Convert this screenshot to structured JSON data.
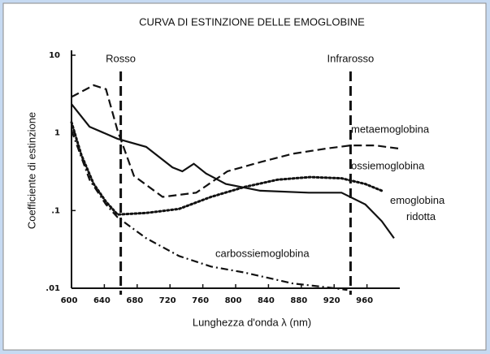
{
  "chart_data": {
    "type": "line",
    "title": "CURVA DI ESTINZIONE DELLE EMOGLOBINE",
    "xlabel": "Lunghezza d'onda λ (nm)",
    "ylabel": "Coefficiente di estinzione",
    "xlim": [
      600,
      1000
    ],
    "xticks": [
      600,
      640,
      680,
      720,
      760,
      800,
      840,
      880,
      920,
      960
    ],
    "ylim": [
      0.01,
      10
    ],
    "yticks": [
      {
        "value": 0.01,
        "label": ".01"
      },
      {
        "value": 0.1,
        "label": ".1"
      },
      1,
      10
    ],
    "log_y": true,
    "grid": false,
    "vlines": [
      {
        "x": 660,
        "label": "Rosso"
      },
      {
        "x": 940,
        "label": "Infrarosso"
      }
    ],
    "series": [
      {
        "name": "metaemoglobina",
        "color": "#111111",
        "style": "dashed",
        "x": [
          600,
          627,
          642,
          656,
          676,
          711,
          752,
          790,
          830,
          870,
          911,
          940,
          970,
          998
        ],
        "values": [
          2.9,
          4.1,
          3.66,
          1.08,
          0.28,
          0.15,
          0.17,
          0.32,
          0.42,
          0.54,
          0.63,
          0.69,
          0.69,
          0.63
        ]
      },
      {
        "name": "ossiemoglobina",
        "color": "#111111",
        "style": "dotted",
        "x": [
          600,
          612,
          627,
          642,
          656,
          691,
          731,
          770,
          810,
          851,
          891,
          929,
          958,
          978
        ],
        "values": [
          1.37,
          0.52,
          0.22,
          0.13,
          0.089,
          0.093,
          0.105,
          0.15,
          0.2,
          0.25,
          0.27,
          0.26,
          0.22,
          0.18
        ]
      },
      {
        "name": "emoglobina ridotta",
        "color": "#111111",
        "style": "solid",
        "x": [
          600,
          622,
          656,
          691,
          723,
          735,
          749,
          764,
          788,
          830,
          889,
          929,
          958,
          978,
          993
        ],
        "values": [
          2.35,
          1.2,
          0.84,
          0.66,
          0.36,
          0.32,
          0.4,
          0.3,
          0.22,
          0.18,
          0.17,
          0.17,
          0.12,
          0.073,
          0.044
        ]
      },
      {
        "name": "carbossiemoglobina",
        "color": "#111111",
        "style": "dashdot",
        "x": [
          600,
          622,
          642,
          656,
          691,
          731,
          770,
          810,
          870,
          911,
          936
        ],
        "values": [
          1.08,
          0.25,
          0.12,
          0.082,
          0.044,
          0.026,
          0.019,
          0.016,
          0.0115,
          0.0103,
          0.0095
        ]
      }
    ]
  }
}
